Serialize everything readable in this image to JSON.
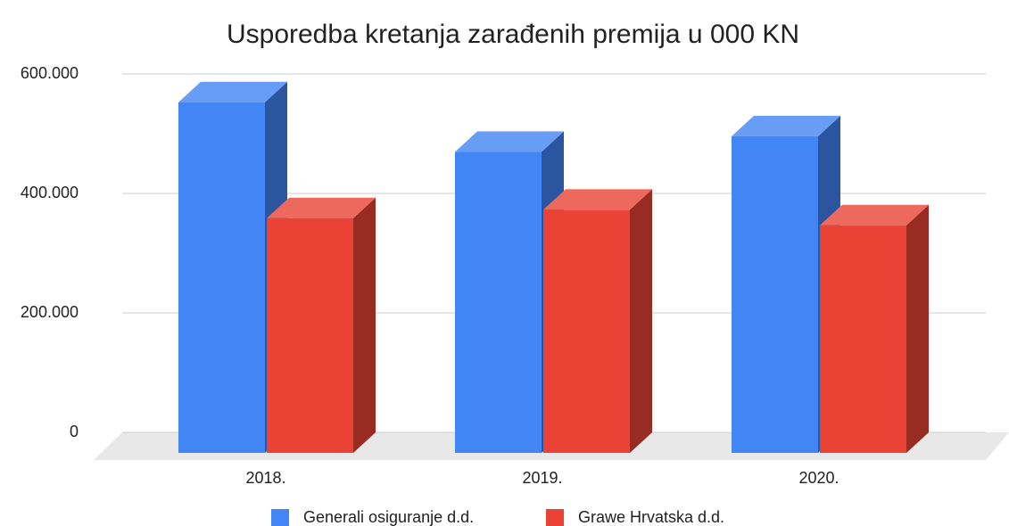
{
  "chart_data": {
    "type": "bar3d",
    "title": "Usporedba kretanja zarađenih premija u 000 KN",
    "categories": [
      "2018.",
      "2019.",
      "2020."
    ],
    "series": [
      {
        "name": "Generali osiguranje d.d.",
        "color": "#4285f4",
        "values": [
          587000,
          504000,
          530000
        ]
      },
      {
        "name": "Grawe Hrvatska d.d.",
        "color": "#ea4335",
        "values": [
          393000,
          407000,
          381000
        ]
      }
    ],
    "ylim": [
      0,
      600000
    ],
    "yticks": [
      0,
      {
        "value": 200000,
        "label": "200.000"
      },
      {
        "value": 400000,
        "label": "400.000"
      },
      {
        "value": 600000,
        "label": "600.000"
      }
    ],
    "grid": true,
    "legend": "bottom"
  }
}
